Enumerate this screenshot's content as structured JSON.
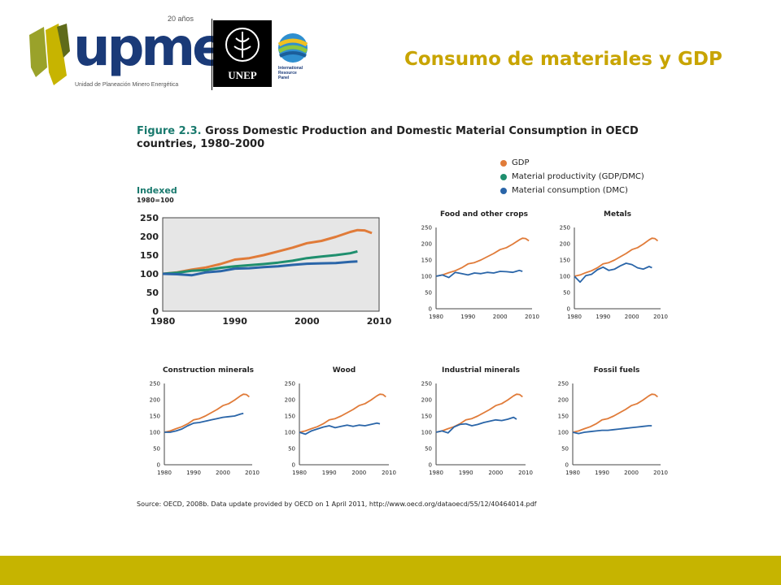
{
  "header": {
    "brand": "upme",
    "anniversary": "20 años",
    "subtitle": "Unidad de Planeación Minero Energética",
    "unep": "UNEP",
    "irp_line1": "International",
    "irp_line2": "Resource",
    "irp_line3": "Panel",
    "slide_title": "Consumo de materiales y GDP"
  },
  "figure": {
    "number": "Figure 2.3.",
    "title": "Gross Domestic Production and Domestic Material Consumption in OECD countries, 1980–2000",
    "source": "Source: OECD, 2008b. Data update provided by OECD on 1 April 2011, http://www.oecd.org/dataoecd/55/12/40464014.pdf"
  },
  "legend": [
    {
      "label": "GDP",
      "color": "#e07b39"
    },
    {
      "label": "Material productivity (GDP/DMC)",
      "color": "#1f8f6e"
    },
    {
      "label": "Material consumption (DMC)",
      "color": "#2a65a8"
    }
  ],
  "colors": {
    "gdp": "#e07b39",
    "productivity": "#1f8f6e",
    "dmc": "#2a65a8",
    "footer": "#c6b400",
    "title": "#c8a400"
  },
  "chart_data": [
    {
      "type": "line",
      "title": "",
      "ylabel": "Indexed",
      "ylabel_sub": "1980=100",
      "xlim": [
        1980,
        2010
      ],
      "ylim": [
        0,
        250
      ],
      "xticks": [
        1980,
        1990,
        2000,
        2010
      ],
      "yticks": [
        0,
        50,
        100,
        150,
        200,
        250
      ],
      "x": [
        1980,
        1982,
        1984,
        1986,
        1988,
        1990,
        1992,
        1994,
        1996,
        1998,
        2000,
        2002,
        2004,
        2006,
        2007,
        2008,
        2009
      ],
      "series": [
        {
          "name": "GDP",
          "color": "#e07b39",
          "values": [
            100,
            104,
            111,
            117,
            126,
            138,
            142,
            150,
            160,
            170,
            182,
            188,
            199,
            212,
            217,
            216,
            209
          ]
        },
        {
          "name": "Material productivity (GDP/DMC)",
          "color": "#1f8f6e",
          "values": [
            100,
            103,
            108,
            110,
            116,
            120,
            123,
            126,
            130,
            135,
            142,
            146,
            150,
            155,
            160,
            null,
            null
          ]
        },
        {
          "name": "Material consumption (DMC)",
          "color": "#2a65a8",
          "values": [
            100,
            99,
            96,
            104,
            107,
            114,
            115,
            118,
            120,
            124,
            127,
            128,
            129,
            132,
            133,
            null,
            null
          ]
        }
      ]
    },
    {
      "type": "line",
      "title": "Food and other crops",
      "xlim": [
        1980,
        2010
      ],
      "ylim": [
        0,
        250
      ],
      "xticks": [
        1980,
        1990,
        2000,
        2010
      ],
      "yticks": [
        0,
        50,
        100,
        150,
        200,
        250
      ],
      "x": [
        1980,
        1982,
        1984,
        1986,
        1988,
        1990,
        1992,
        1994,
        1996,
        1998,
        2000,
        2002,
        2004,
        2006,
        2007,
        2008,
        2009
      ],
      "series": [
        {
          "name": "GDP",
          "color": "#e07b39",
          "values": [
            100,
            104,
            111,
            117,
            126,
            138,
            142,
            150,
            160,
            170,
            182,
            188,
            199,
            212,
            217,
            216,
            209
          ]
        },
        {
          "name": "Material consumption (DMC)",
          "color": "#2a65a8",
          "values": [
            100,
            104,
            96,
            112,
            108,
            104,
            110,
            108,
            112,
            110,
            115,
            114,
            112,
            118,
            115,
            null,
            null
          ]
        }
      ]
    },
    {
      "type": "line",
      "title": "Metals",
      "xlim": [
        1980,
        2010
      ],
      "ylim": [
        0,
        250
      ],
      "xticks": [
        1980,
        1990,
        2000,
        2010
      ],
      "yticks": [
        0,
        50,
        100,
        150,
        200,
        250
      ],
      "x": [
        1980,
        1982,
        1984,
        1986,
        1988,
        1990,
        1992,
        1994,
        1996,
        1998,
        2000,
        2002,
        2004,
        2006,
        2007,
        2008,
        2009
      ],
      "series": [
        {
          "name": "GDP",
          "color": "#e07b39",
          "values": [
            100,
            104,
            111,
            117,
            126,
            138,
            142,
            150,
            160,
            170,
            182,
            188,
            199,
            212,
            217,
            216,
            209
          ]
        },
        {
          "name": "Material consumption (DMC)",
          "color": "#2a65a8",
          "values": [
            100,
            82,
            102,
            106,
            120,
            128,
            118,
            122,
            132,
            140,
            136,
            126,
            122,
            130,
            126,
            null,
            null
          ]
        }
      ]
    },
    {
      "type": "line",
      "title": "Construction minerals",
      "xlim": [
        1980,
        2010
      ],
      "ylim": [
        0,
        250
      ],
      "xticks": [
        1980,
        1990,
        2000,
        2010
      ],
      "yticks": [
        0,
        50,
        100,
        150,
        200,
        250
      ],
      "x": [
        1980,
        1982,
        1984,
        1986,
        1988,
        1990,
        1992,
        1994,
        1996,
        1998,
        2000,
        2002,
        2004,
        2006,
        2007,
        2008,
        2009
      ],
      "series": [
        {
          "name": "GDP",
          "color": "#e07b39",
          "values": [
            100,
            104,
            111,
            117,
            126,
            138,
            142,
            150,
            160,
            170,
            182,
            188,
            199,
            212,
            217,
            216,
            209
          ]
        },
        {
          "name": "Material consumption (DMC)",
          "color": "#2a65a8",
          "values": [
            100,
            100,
            104,
            110,
            120,
            128,
            130,
            134,
            138,
            142,
            146,
            148,
            150,
            156,
            158,
            null,
            null
          ]
        }
      ]
    },
    {
      "type": "line",
      "title": "Wood",
      "xlim": [
        1980,
        2010
      ],
      "ylim": [
        0,
        250
      ],
      "xticks": [
        1980,
        1990,
        2000,
        2010
      ],
      "yticks": [
        0,
        50,
        100,
        150,
        200,
        250
      ],
      "x": [
        1980,
        1982,
        1984,
        1986,
        1988,
        1990,
        1992,
        1994,
        1996,
        1998,
        2000,
        2002,
        2004,
        2006,
        2007,
        2008,
        2009
      ],
      "series": [
        {
          "name": "GDP",
          "color": "#e07b39",
          "values": [
            100,
            104,
            111,
            117,
            126,
            138,
            142,
            150,
            160,
            170,
            182,
            188,
            199,
            212,
            217,
            216,
            209
          ]
        },
        {
          "name": "Material consumption (DMC)",
          "color": "#2a65a8",
          "values": [
            100,
            94,
            104,
            110,
            116,
            120,
            114,
            118,
            122,
            118,
            122,
            120,
            124,
            128,
            126,
            null,
            null
          ]
        }
      ]
    },
    {
      "type": "line",
      "title": "Industrial minerals",
      "xlim": [
        1980,
        2010
      ],
      "ylim": [
        0,
        250
      ],
      "xticks": [
        1980,
        1990,
        2000,
        2010
      ],
      "yticks": [
        0,
        50,
        100,
        150,
        200,
        250
      ],
      "x": [
        1980,
        1982,
        1984,
        1986,
        1988,
        1990,
        1992,
        1994,
        1996,
        1998,
        2000,
        2002,
        2004,
        2006,
        2007,
        2008,
        2009
      ],
      "series": [
        {
          "name": "GDP",
          "color": "#e07b39",
          "values": [
            100,
            104,
            111,
            117,
            126,
            138,
            142,
            150,
            160,
            170,
            182,
            188,
            199,
            212,
            217,
            216,
            209
          ]
        },
        {
          "name": "Material consumption (DMC)",
          "color": "#2a65a8",
          "values": [
            100,
            104,
            98,
            116,
            124,
            126,
            120,
            124,
            130,
            134,
            138,
            136,
            140,
            146,
            140,
            null,
            null
          ]
        }
      ]
    },
    {
      "type": "line",
      "title": "Fossil fuels",
      "xlim": [
        1980,
        2010
      ],
      "ylim": [
        0,
        250
      ],
      "xticks": [
        1980,
        1990,
        2000,
        2010
      ],
      "yticks": [
        0,
        50,
        100,
        150,
        200,
        250
      ],
      "x": [
        1980,
        1982,
        1984,
        1986,
        1988,
        1990,
        1992,
        1994,
        1996,
        1998,
        2000,
        2002,
        2004,
        2006,
        2007,
        2008,
        2009
      ],
      "series": [
        {
          "name": "GDP",
          "color": "#e07b39",
          "values": [
            100,
            104,
            111,
            117,
            126,
            138,
            142,
            150,
            160,
            170,
            182,
            188,
            199,
            212,
            217,
            216,
            209
          ]
        },
        {
          "name": "Material consumption (DMC)",
          "color": "#2a65a8",
          "values": [
            100,
            96,
            100,
            102,
            104,
            106,
            106,
            108,
            110,
            112,
            114,
            116,
            118,
            120,
            120,
            null,
            null
          ]
        }
      ]
    }
  ]
}
